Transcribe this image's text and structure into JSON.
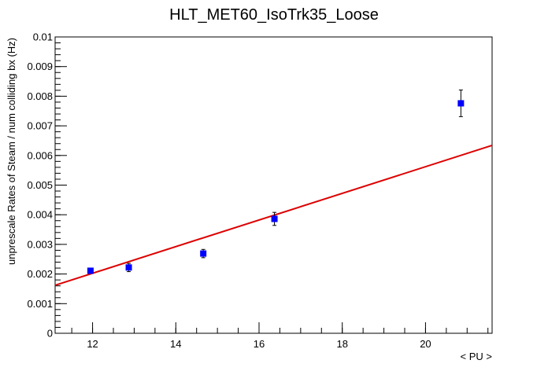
{
  "chart_data": {
    "type": "scatter",
    "title": "HLT_MET60_IsoTrk35_Loose",
    "xlabel": "< PU >",
    "ylabel": "unprescale Rates of Steam / num colliding bx (Hz)",
    "xlim": [
      11.1,
      21.6
    ],
    "ylim": [
      0,
      0.01
    ],
    "x_ticks": [
      12,
      14,
      16,
      18,
      20
    ],
    "x_tick_labels": [
      "12",
      "14",
      "16",
      "18",
      "20"
    ],
    "y_ticks": [
      0,
      0.001,
      0.002,
      0.003,
      0.004,
      0.005,
      0.006,
      0.007,
      0.008,
      0.009,
      0.01
    ],
    "y_tick_labels": [
      "0",
      "0.001",
      "0.002",
      "0.003",
      "0.004",
      "0.005",
      "0.006",
      "0.007",
      "0.008",
      "0.009",
      "0.01"
    ],
    "grid": false,
    "series": [
      {
        "marker": "square",
        "color": "#0000ff",
        "points": [
          {
            "x": 11.95,
            "y": 0.00211,
            "err": 8e-05
          },
          {
            "x": 12.87,
            "y": 0.00222,
            "err": 0.00014
          },
          {
            "x": 14.66,
            "y": 0.00269,
            "err": 0.00014
          },
          {
            "x": 16.37,
            "y": 0.00386,
            "err": 0.00022
          },
          {
            "x": 20.85,
            "y": 0.00776,
            "err": 0.00045
          }
        ]
      }
    ],
    "fit": {
      "type": "linear",
      "color": "#dd0000",
      "x": [
        11.1,
        21.6
      ],
      "y": [
        0.00162,
        0.00634
      ]
    }
  }
}
